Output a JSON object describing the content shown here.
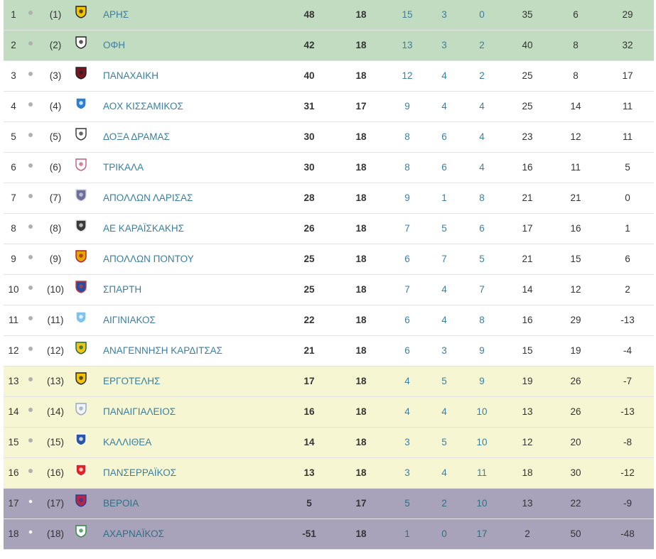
{
  "zone_colors": {
    "promo": "#c2dcc2",
    "normal": "#ffffff",
    "release": "#f6f6d3",
    "out": "#a9a2bb"
  },
  "rows": [
    {
      "pos": "1",
      "prev": "(1)",
      "team": "ΑΡΗΣ",
      "pts": "48",
      "gp": "18",
      "w": "15",
      "d": "3",
      "l": "0",
      "gf": "35",
      "ga": "6",
      "gd": "29",
      "zone": "promo",
      "trend": "same",
      "crest": "aris-crest-icon",
      "crest_colors": [
        "#f2c500",
        "#222222"
      ]
    },
    {
      "pos": "2",
      "prev": "(2)",
      "team": "ΟΦΗ",
      "pts": "42",
      "gp": "18",
      "w": "13",
      "d": "3",
      "l": "2",
      "gf": "40",
      "ga": "8",
      "gd": "32",
      "zone": "promo",
      "trend": "same",
      "crest": "ofi-crest-icon",
      "crest_colors": [
        "#ffffff",
        "#222222"
      ]
    },
    {
      "pos": "3",
      "prev": "(3)",
      "team": "ΠΑΝΑΧΑΙΚΗ",
      "pts": "40",
      "gp": "18",
      "w": "12",
      "d": "4",
      "l": "2",
      "gf": "25",
      "ga": "8",
      "gd": "17",
      "zone": "normal",
      "trend": "same",
      "crest": "panachaiki-crest-icon",
      "crest_colors": [
        "#7a1420",
        "#222222"
      ]
    },
    {
      "pos": "4",
      "prev": "(4)",
      "team": "ΑΟΧ ΚΙΣΣΑΜΙΚΟΣ",
      "pts": "31",
      "gp": "17",
      "w": "9",
      "d": "4",
      "l": "4",
      "gf": "25",
      "ga": "14",
      "gd": "11",
      "zone": "normal",
      "trend": "same",
      "crest": "kissamikos-crest-icon",
      "crest_colors": [
        "#2d7fd1",
        "#ffffff"
      ]
    },
    {
      "pos": "5",
      "prev": "(5)",
      "team": "ΔΟΞΑ ΔΡΑΜΑΣ",
      "pts": "30",
      "gp": "18",
      "w": "8",
      "d": "6",
      "l": "4",
      "gf": "23",
      "ga": "12",
      "gd": "11",
      "zone": "normal",
      "trend": "same",
      "crest": "doxa-dramas-crest-icon",
      "crest_colors": [
        "#ffffff",
        "#333333"
      ]
    },
    {
      "pos": "6",
      "prev": "(6)",
      "team": "ΤΡΙΚΑΛΑ",
      "pts": "30",
      "gp": "18",
      "w": "8",
      "d": "6",
      "l": "4",
      "gf": "16",
      "ga": "11",
      "gd": "5",
      "zone": "normal",
      "trend": "same",
      "crest": "trikala-crest-icon",
      "crest_colors": [
        "#ffffff",
        "#c6577e"
      ]
    },
    {
      "pos": "7",
      "prev": "(7)",
      "team": "ΑΠΟΛΛΩΝ ΛΑΡΙΣΑΣ",
      "pts": "28",
      "gp": "18",
      "w": "9",
      "d": "1",
      "l": "8",
      "gf": "21",
      "ga": "21",
      "gd": "0",
      "zone": "normal",
      "trend": "same",
      "crest": "apollon-larisas-crest-icon",
      "crest_colors": [
        "#6e6e9a",
        "#d8d8e4"
      ]
    },
    {
      "pos": "8",
      "prev": "(8)",
      "team": "ΑΕ ΚΑΡΑΪΣΚΑΚΗΣ",
      "pts": "26",
      "gp": "18",
      "w": "7",
      "d": "5",
      "l": "6",
      "gf": "17",
      "ga": "16",
      "gd": "1",
      "zone": "normal",
      "trend": "same",
      "crest": "karaiskakis-crest-icon",
      "crest_colors": [
        "#3a3a3a",
        "#e6e6e6"
      ]
    },
    {
      "pos": "9",
      "prev": "(9)",
      "team": "ΑΠΟΛΛΩΝ ΠΟΝΤΟΥ",
      "pts": "25",
      "gp": "18",
      "w": "6",
      "d": "7",
      "l": "5",
      "gf": "21",
      "ga": "15",
      "gd": "6",
      "zone": "normal",
      "trend": "same",
      "crest": "apollon-pontou-crest-icon",
      "crest_colors": [
        "#e0a800",
        "#b01f1f"
      ]
    },
    {
      "pos": "10",
      "prev": "(10)",
      "team": "ΣΠΑΡΤΗ",
      "pts": "25",
      "gp": "18",
      "w": "7",
      "d": "4",
      "l": "7",
      "gf": "14",
      "ga": "12",
      "gd": "2",
      "zone": "normal",
      "trend": "same",
      "crest": "sparti-crest-icon",
      "crest_colors": [
        "#1f4fa8",
        "#d23a3a"
      ]
    },
    {
      "pos": "11",
      "prev": "(11)",
      "team": "ΑΙΓΙΝΙΑΚΟΣ",
      "pts": "22",
      "gp": "18",
      "w": "6",
      "d": "4",
      "l": "8",
      "gf": "16",
      "ga": "29",
      "gd": "-13",
      "zone": "normal",
      "trend": "same",
      "crest": "aiginiakos-crest-icon",
      "crest_colors": [
        "#7fc2ec",
        "#ffffff"
      ]
    },
    {
      "pos": "12",
      "prev": "(12)",
      "team": "ΑΝΑΓΕΝΝΗΣΗ ΚΑΡΔΙΤΣΑΣ",
      "pts": "21",
      "gp": "18",
      "w": "6",
      "d": "3",
      "l": "9",
      "gf": "15",
      "ga": "19",
      "gd": "-4",
      "zone": "normal",
      "trend": "same",
      "crest": "anagennisi-karditsas-crest-icon",
      "crest_colors": [
        "#f0c419",
        "#1a6a2a"
      ]
    },
    {
      "pos": "13",
      "prev": "(13)",
      "team": "ΕΡΓΟΤΕΛΗΣ",
      "pts": "17",
      "gp": "18",
      "w": "4",
      "d": "5",
      "l": "9",
      "gf": "19",
      "ga": "26",
      "gd": "-7",
      "zone": "release",
      "trend": "same",
      "crest": "ergotelis-crest-icon",
      "crest_colors": [
        "#f2c500",
        "#222222"
      ]
    },
    {
      "pos": "14",
      "prev": "(14)",
      "team": "ΠΑΝΑΙΓΙΑΛΕΙΟΣ",
      "pts": "16",
      "gp": "18",
      "w": "4",
      "d": "4",
      "l": "10",
      "gf": "13",
      "ga": "26",
      "gd": "-13",
      "zone": "release",
      "trend": "same",
      "crest": "panaigialeios-crest-icon",
      "crest_colors": [
        "#f4f4f4",
        "#8fa6c6"
      ]
    },
    {
      "pos": "15",
      "prev": "(15)",
      "team": "ΚΑΛΛΙΘΕΑ",
      "pts": "14",
      "gp": "18",
      "w": "3",
      "d": "5",
      "l": "10",
      "gf": "12",
      "ga": "20",
      "gd": "-8",
      "zone": "release",
      "trend": "same",
      "crest": "kallithea-crest-icon",
      "crest_colors": [
        "#2a56a8",
        "#ffffff"
      ]
    },
    {
      "pos": "16",
      "prev": "(16)",
      "team": "ΠΑΝΣΕΡΡΑΪΚΟΣ",
      "pts": "13",
      "gp": "18",
      "w": "3",
      "d": "4",
      "l": "11",
      "gf": "18",
      "ga": "30",
      "gd": "-12",
      "zone": "release",
      "trend": "same",
      "crest": "panserraikos-crest-icon",
      "crest_colors": [
        "#e02424",
        "#ffffff"
      ]
    },
    {
      "pos": "17",
      "prev": "(17)",
      "team": "ΒΕΡΟΙΑ",
      "pts": "5",
      "gp": "17",
      "w": "5",
      "d": "2",
      "l": "10",
      "gf": "13",
      "ga": "22",
      "gd": "-9",
      "zone": "out",
      "trend": "down",
      "crest": "veroia-crest-icon",
      "crest_colors": [
        "#b5264b",
        "#2c3c8c"
      ]
    },
    {
      "pos": "18",
      "prev": "(18)",
      "team": "ΑΧΑΡΝΑΪΚΟΣ",
      "pts": "-51",
      "gp": "18",
      "w": "1",
      "d": "0",
      "l": "17",
      "gf": "2",
      "ga": "50",
      "gd": "-48",
      "zone": "out",
      "trend": "down",
      "crest": "acharnaikos-crest-icon",
      "crest_colors": [
        "#ffffff",
        "#2b8a3e"
      ]
    }
  ]
}
